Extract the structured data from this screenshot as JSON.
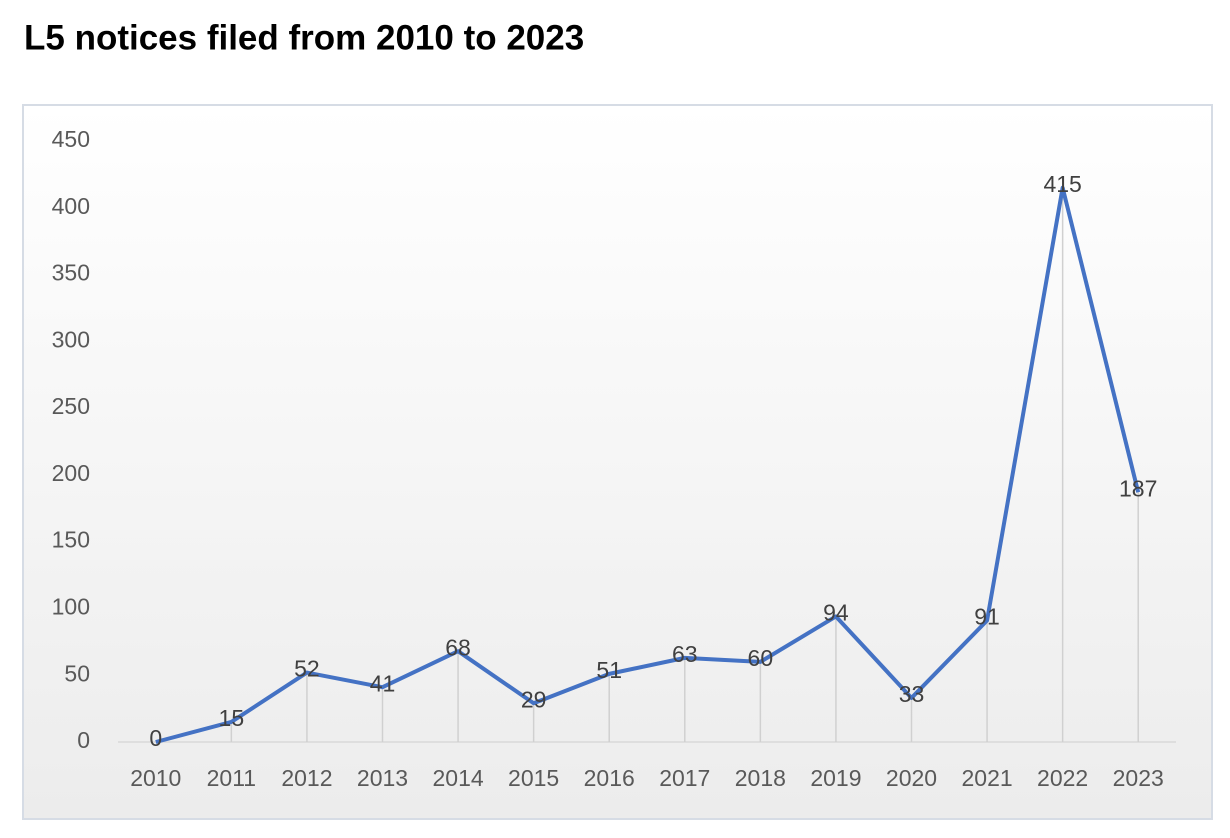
{
  "chart_data": {
    "type": "line",
    "title": "L5 notices filed from 2010 to 2023",
    "categories": [
      "2010",
      "2011",
      "2012",
      "2013",
      "2014",
      "2015",
      "2016",
      "2017",
      "2018",
      "2019",
      "2020",
      "2021",
      "2022",
      "2023"
    ],
    "values": [
      0,
      15,
      52,
      41,
      68,
      29,
      51,
      63,
      60,
      94,
      33,
      91,
      415,
      187
    ],
    "color": "#4472c4",
    "ylim": [
      0,
      450
    ],
    "yticks": [
      0,
      50,
      100,
      150,
      200,
      250,
      300,
      350,
      400,
      450
    ],
    "grid": false,
    "drop_lines": true,
    "data_labels": true
  }
}
